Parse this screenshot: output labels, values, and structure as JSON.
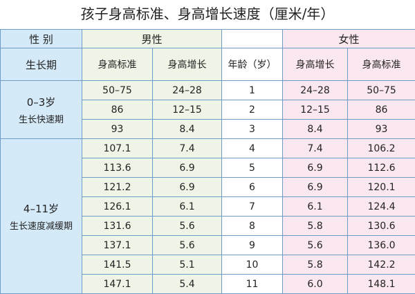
{
  "title": "孩子身高标准、身高增长速度（厘米/年）",
  "header": {
    "gender": "性 别",
    "male": "男性",
    "female": "女性",
    "period": "生长期",
    "male_cols": [
      "身高标准",
      "身高增长"
    ],
    "age": "年龄（岁）",
    "female_cols": [
      "身高增长",
      "身高标准"
    ]
  },
  "groups": [
    {
      "range": "0–3岁",
      "name": "生长快速期"
    },
    {
      "range": "4–11岁",
      "name": "生长速度减缓期"
    }
  ],
  "rows": [
    [
      "50–75",
      "24–28",
      "1",
      "24–28",
      "50–75"
    ],
    [
      "86",
      "12–15",
      "2",
      "12–15",
      "86"
    ],
    [
      "93",
      "8.4",
      "3",
      "8.4",
      "93"
    ],
    [
      "107.1",
      "7.4",
      "4",
      "7.4",
      "106.2"
    ],
    [
      "113.6",
      "6.9",
      "5",
      "6.9",
      "112.6"
    ],
    [
      "121.2",
      "6.9",
      "6",
      "6.9",
      "120.1"
    ],
    [
      "126.1",
      "6.1",
      "7",
      "6.1",
      "124.4"
    ],
    [
      "131.6",
      "5.6",
      "8",
      "5.8",
      "130.6"
    ],
    [
      "137.1",
      "5.6",
      "9",
      "5.6",
      "136.0"
    ],
    [
      "141.5",
      "5.1",
      "10",
      "5.8",
      "142.2"
    ],
    [
      "147.1",
      "5.4",
      "11",
      "6.0",
      "148.1"
    ]
  ]
}
